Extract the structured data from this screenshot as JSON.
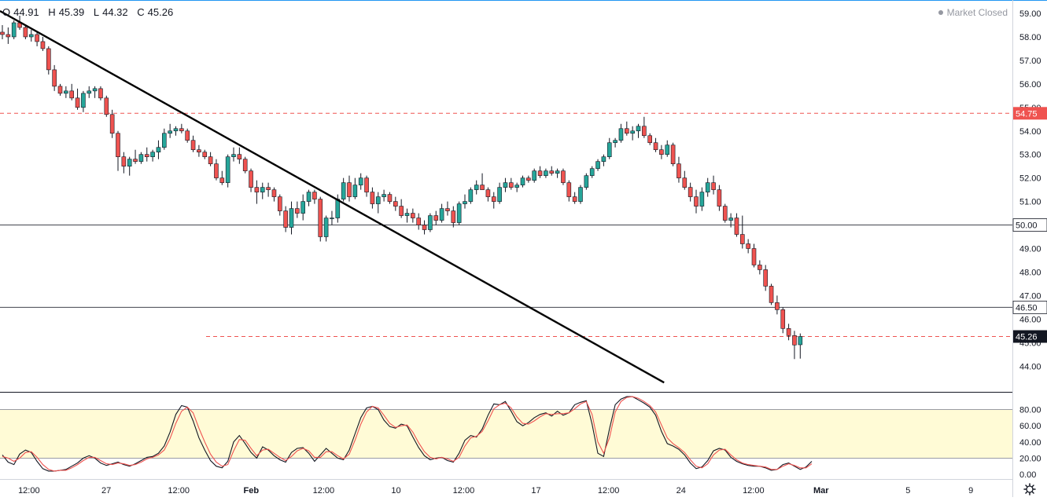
{
  "header": {
    "ohlc": [
      {
        "label": "O",
        "value": "44.91"
      },
      {
        "label": "H",
        "value": "45.39"
      },
      {
        "label": "L",
        "value": "44.32"
      },
      {
        "label": "C",
        "value": "45.26"
      }
    ],
    "market_status": "Market Closed"
  },
  "colors": {
    "up": "#26a69a",
    "down": "#ef5350",
    "candle_border": "#131722",
    "level_red": "#ef5350",
    "level_black": "#131722",
    "band_fill": "#fffbd6",
    "stoch_k": "#131722",
    "stoch_d": "#ef5350"
  },
  "chart_data": [
    {
      "type": "candlestick",
      "title": "",
      "xlabel": "",
      "ylabel": "",
      "ylim": [
        43.0,
        59.2
      ],
      "xlim": [
        0,
        1330
      ],
      "x_ticks": [
        {
          "label": "12:00",
          "x": 12
        },
        {
          "label": "27",
          "x": 44
        },
        {
          "label": "12:00",
          "x": 74
        },
        {
          "label": "Feb",
          "x": 104
        },
        {
          "label": "12:00",
          "x": 134
        },
        {
          "label": "10",
          "x": 164
        },
        {
          "label": "12:00",
          "x": 192
        },
        {
          "label": "17",
          "x": 222
        },
        {
          "label": "12:00",
          "x": 252
        },
        {
          "label": "24",
          "x": 282
        },
        {
          "label": "12:00",
          "x": 312
        },
        {
          "label": "Mar",
          "x": 340
        },
        {
          "label": "5",
          "x": 376
        },
        {
          "label": "9",
          "x": 402
        }
      ],
      "y_ticks": [
        "59.00",
        "58.00",
        "57.00",
        "56.00",
        "55.00",
        "54.00",
        "53.00",
        "52.00",
        "51.00",
        "50.00",
        "49.00",
        "48.00",
        "47.00",
        "46.00",
        "45.00",
        "44.00"
      ],
      "levels": [
        {
          "value": 54.75,
          "label": "54.75",
          "style": "dashed",
          "color": "red"
        },
        {
          "value": 50.0,
          "label": "50.00",
          "style": "solid",
          "color": "black"
        },
        {
          "value": 46.5,
          "label": "46.50",
          "style": "solid",
          "color": "black"
        },
        {
          "value": 45.26,
          "label": "45.26",
          "style": "dashed",
          "color": "red",
          "current": true
        }
      ],
      "trendline": {
        "from": {
          "x": 0,
          "y": 59.1
        },
        "to": {
          "x": 275,
          "y": 43.3
        }
      },
      "ohlc_series": [
        [
          58.2,
          58.5,
          57.9,
          58.1
        ],
        [
          58.1,
          58.4,
          57.7,
          58.0
        ],
        [
          58.0,
          58.7,
          57.9,
          58.6
        ],
        [
          58.6,
          58.9,
          58.3,
          58.4
        ],
        [
          58.4,
          58.5,
          57.9,
          58.0
        ],
        [
          58.0,
          58.3,
          57.8,
          58.1
        ],
        [
          58.1,
          58.2,
          57.6,
          57.8
        ],
        [
          57.8,
          58.0,
          57.4,
          57.5
        ],
        [
          57.5,
          57.6,
          56.4,
          56.6
        ],
        [
          56.6,
          56.8,
          55.7,
          55.9
        ],
        [
          55.9,
          56.0,
          55.5,
          55.6
        ],
        [
          55.6,
          55.9,
          55.4,
          55.7
        ],
        [
          55.7,
          56.0,
          55.3,
          55.4
        ],
        [
          55.4,
          55.8,
          54.9,
          55.0
        ],
        [
          55.0,
          55.7,
          54.8,
          55.6
        ],
        [
          55.6,
          55.9,
          55.4,
          55.7
        ],
        [
          55.7,
          55.9,
          55.4,
          55.8
        ],
        [
          55.8,
          55.9,
          55.3,
          55.4
        ],
        [
          55.4,
          55.5,
          54.6,
          54.7
        ],
        [
          54.7,
          54.9,
          53.7,
          53.9
        ],
        [
          53.9,
          54.0,
          52.3,
          52.9
        ],
        [
          52.9,
          53.1,
          52.2,
          52.5
        ],
        [
          52.5,
          52.9,
          52.1,
          52.8
        ],
        [
          52.8,
          53.2,
          52.6,
          52.7
        ],
        [
          52.7,
          53.1,
          52.6,
          53.0
        ],
        [
          53.0,
          53.3,
          52.7,
          52.9
        ],
        [
          52.9,
          53.2,
          52.7,
          53.1
        ],
        [
          53.1,
          53.6,
          52.8,
          53.3
        ],
        [
          53.3,
          54.1,
          53.2,
          53.9
        ],
        [
          53.9,
          54.3,
          53.7,
          54.0
        ],
        [
          54.0,
          54.2,
          53.8,
          54.1
        ],
        [
          54.1,
          54.3,
          53.9,
          54.0
        ],
        [
          54.0,
          54.1,
          53.5,
          53.6
        ],
        [
          53.6,
          53.8,
          53.1,
          53.2
        ],
        [
          53.2,
          53.4,
          52.9,
          53.1
        ],
        [
          53.1,
          53.2,
          52.8,
          52.9
        ],
        [
          52.9,
          53.1,
          52.5,
          52.6
        ],
        [
          52.6,
          52.8,
          51.9,
          52.0
        ],
        [
          52.0,
          52.3,
          51.7,
          51.8
        ],
        [
          51.8,
          53.0,
          51.6,
          52.9
        ],
        [
          52.9,
          53.3,
          52.7,
          53.0
        ],
        [
          53.0,
          53.3,
          52.6,
          52.8
        ],
        [
          52.8,
          52.9,
          52.2,
          52.3
        ],
        [
          52.3,
          52.4,
          51.4,
          51.6
        ],
        [
          51.6,
          51.9,
          50.9,
          51.4
        ],
        [
          51.4,
          51.8,
          51.1,
          51.6
        ],
        [
          51.6,
          51.8,
          51.2,
          51.5
        ],
        [
          51.5,
          51.6,
          51.0,
          51.2
        ],
        [
          51.2,
          51.3,
          50.4,
          50.6
        ],
        [
          50.6,
          50.8,
          49.7,
          49.9
        ],
        [
          49.9,
          51.0,
          49.6,
          50.7
        ],
        [
          50.7,
          51.0,
          50.3,
          50.5
        ],
        [
          50.5,
          51.3,
          50.2,
          51.0
        ],
        [
          51.0,
          51.5,
          50.8,
          51.4
        ],
        [
          51.4,
          51.5,
          50.9,
          51.1
        ],
        [
          51.1,
          51.2,
          49.3,
          49.5
        ],
        [
          49.5,
          50.4,
          49.3,
          50.3
        ],
        [
          50.3,
          50.6,
          50.0,
          50.3
        ],
        [
          50.3,
          51.3,
          50.1,
          51.1
        ],
        [
          51.1,
          52.0,
          51.0,
          51.8
        ],
        [
          51.8,
          52.1,
          51.0,
          51.2
        ],
        [
          51.2,
          52.0,
          51.1,
          51.7
        ],
        [
          51.7,
          52.2,
          51.5,
          52.0
        ],
        [
          52.0,
          52.1,
          51.2,
          51.4
        ],
        [
          51.4,
          51.6,
          50.7,
          50.9
        ],
        [
          50.9,
          51.4,
          50.5,
          51.2
        ],
        [
          51.2,
          51.5,
          51.0,
          51.3
        ],
        [
          51.3,
          51.4,
          50.9,
          51.0
        ],
        [
          51.0,
          51.2,
          50.6,
          50.8
        ],
        [
          50.8,
          51.1,
          50.3,
          50.4
        ],
        [
          50.4,
          50.7,
          50.1,
          50.5
        ],
        [
          50.5,
          50.7,
          50.1,
          50.3
        ],
        [
          50.3,
          50.5,
          49.8,
          50.0
        ],
        [
          50.0,
          50.2,
          49.6,
          49.8
        ],
        [
          49.8,
          50.5,
          49.7,
          50.4
        ],
        [
          50.4,
          50.6,
          50.0,
          50.2
        ],
        [
          50.2,
          50.9,
          50.1,
          50.7
        ],
        [
          50.7,
          51.0,
          50.4,
          50.6
        ],
        [
          50.6,
          50.8,
          49.9,
          50.1
        ],
        [
          50.1,
          51.0,
          50.0,
          50.9
        ],
        [
          50.9,
          51.3,
          50.7,
          51.0
        ],
        [
          51.0,
          51.6,
          50.9,
          51.5
        ],
        [
          51.5,
          51.9,
          51.3,
          51.7
        ],
        [
          51.7,
          52.2,
          51.5,
          51.5
        ],
        [
          51.5,
          51.6,
          51.0,
          51.2
        ],
        [
          51.2,
          51.4,
          50.7,
          51.0
        ],
        [
          51.0,
          51.8,
          50.9,
          51.6
        ],
        [
          51.6,
          52.0,
          51.4,
          51.8
        ],
        [
          51.8,
          52.0,
          51.5,
          51.6
        ],
        [
          51.6,
          51.8,
          51.4,
          51.7
        ],
        [
          51.7,
          52.1,
          51.6,
          52.0
        ],
        [
          52.0,
          52.1,
          51.8,
          51.9
        ],
        [
          51.9,
          52.4,
          51.8,
          52.3
        ],
        [
          52.3,
          52.5,
          52.0,
          52.1
        ],
        [
          52.1,
          52.4,
          52.0,
          52.3
        ],
        [
          52.3,
          52.5,
          52.1,
          52.2
        ],
        [
          52.2,
          52.4,
          52.0,
          52.3
        ],
        [
          52.3,
          52.4,
          51.7,
          51.8
        ],
        [
          51.8,
          51.9,
          51.0,
          51.2
        ],
        [
          51.2,
          51.4,
          50.9,
          51.0
        ],
        [
          51.0,
          51.7,
          50.9,
          51.6
        ],
        [
          51.6,
          52.2,
          51.5,
          52.1
        ],
        [
          52.1,
          52.5,
          52.0,
          52.4
        ],
        [
          52.4,
          52.8,
          52.3,
          52.7
        ],
        [
          52.7,
          53.0,
          52.5,
          52.9
        ],
        [
          52.9,
          53.7,
          52.8,
          53.5
        ],
        [
          53.5,
          53.7,
          53.3,
          53.6
        ],
        [
          53.6,
          54.3,
          53.5,
          54.1
        ],
        [
          54.1,
          54.4,
          53.8,
          53.9
        ],
        [
          53.9,
          54.2,
          53.6,
          54.0
        ],
        [
          54.0,
          54.3,
          53.7,
          54.2
        ],
        [
          54.2,
          54.6,
          53.7,
          53.8
        ],
        [
          53.8,
          53.9,
          53.4,
          53.5
        ],
        [
          53.5,
          53.7,
          53.1,
          53.2
        ],
        [
          53.2,
          53.4,
          52.8,
          53.0
        ],
        [
          53.0,
          53.6,
          52.9,
          53.4
        ],
        [
          53.4,
          53.5,
          52.5,
          52.6
        ],
        [
          52.6,
          52.9,
          51.8,
          52.0
        ],
        [
          52.0,
          52.3,
          51.5,
          51.6
        ],
        [
          51.6,
          51.8,
          51.0,
          51.2
        ],
        [
          51.2,
          51.5,
          50.5,
          50.8
        ],
        [
          50.8,
          51.6,
          50.6,
          51.4
        ],
        [
          51.4,
          52.0,
          51.2,
          51.8
        ],
        [
          51.8,
          52.1,
          51.3,
          51.5
        ],
        [
          51.5,
          51.7,
          50.6,
          50.8
        ],
        [
          50.8,
          50.9,
          50.1,
          50.2
        ],
        [
          50.2,
          50.5,
          49.9,
          50.3
        ],
        [
          50.3,
          50.5,
          49.5,
          49.6
        ],
        [
          49.6,
          50.4,
          49.0,
          49.2
        ],
        [
          49.2,
          49.4,
          48.8,
          49.0
        ],
        [
          49.0,
          49.2,
          48.2,
          48.3
        ],
        [
          48.3,
          48.5,
          47.9,
          48.1
        ],
        [
          48.1,
          48.3,
          47.2,
          47.4
        ],
        [
          47.4,
          47.5,
          46.6,
          46.7
        ],
        [
          46.7,
          47.0,
          46.2,
          46.4
        ],
        [
          46.4,
          46.5,
          45.4,
          45.6
        ],
        [
          45.6,
          45.8,
          45.1,
          45.3
        ],
        [
          45.3,
          45.5,
          44.3,
          44.9
        ],
        [
          44.91,
          45.39,
          44.32,
          45.26
        ]
      ]
    },
    {
      "type": "line",
      "title": "",
      "ylim": [
        0,
        100
      ],
      "y_ticks": [
        "80.00",
        "60.00",
        "40.00",
        "20.00",
        "0.00"
      ],
      "band": [
        20,
        80
      ],
      "series": [
        {
          "name": "",
          "values": [
            24,
            15,
            12,
            25,
            30,
            27,
            16,
            7,
            4,
            4,
            5,
            6,
            10,
            14,
            20,
            23,
            20,
            14,
            11,
            13,
            15,
            12,
            10,
            13,
            17,
            21,
            22,
            26,
            35,
            52,
            74,
            85,
            83,
            66,
            45,
            30,
            17,
            10,
            8,
            16,
            40,
            48,
            38,
            27,
            20,
            34,
            30,
            23,
            18,
            15,
            27,
            32,
            33,
            26,
            16,
            24,
            32,
            26,
            20,
            18,
            30,
            50,
            70,
            82,
            84,
            80,
            67,
            59,
            57,
            62,
            60,
            46,
            33,
            23,
            18,
            20,
            21,
            17,
            15,
            26,
            42,
            48,
            46,
            56,
            73,
            87,
            86,
            90,
            78,
            65,
            60,
            64,
            70,
            74,
            76,
            72,
            78,
            73,
            76,
            86,
            89,
            91,
            62,
            26,
            22,
            56,
            86,
            93,
            96,
            96,
            92,
            88,
            83,
            73,
            53,
            38,
            35,
            31,
            24,
            14,
            7,
            9,
            17,
            29,
            32,
            30,
            21,
            16,
            13,
            11,
            10,
            10,
            8,
            5,
            6,
            12,
            14,
            10,
            6,
            9,
            16
          ]
        },
        {
          "name": "",
          "values": [
            22,
            20,
            16,
            20,
            27,
            28,
            21,
            12,
            6,
            4,
            5,
            5,
            8,
            12,
            17,
            21,
            21,
            17,
            13,
            12,
            14,
            13,
            11,
            12,
            15,
            19,
            21,
            24,
            30,
            44,
            63,
            78,
            83,
            76,
            57,
            40,
            25,
            15,
            10,
            12,
            29,
            43,
            42,
            32,
            23,
            30,
            31,
            26,
            21,
            17,
            22,
            29,
            32,
            29,
            21,
            21,
            28,
            28,
            23,
            19,
            25,
            42,
            62,
            77,
            84,
            82,
            73,
            63,
            58,
            60,
            61,
            52,
            39,
            28,
            21,
            19,
            21,
            19,
            16,
            21,
            35,
            45,
            47,
            53,
            66,
            81,
            86,
            88,
            82,
            71,
            63,
            62,
            66,
            71,
            75,
            74,
            75,
            75,
            76,
            81,
            87,
            90,
            74,
            40,
            26,
            45,
            77,
            90,
            95,
            96,
            94,
            90,
            85,
            77,
            61,
            45,
            38,
            33,
            27,
            18,
            10,
            8,
            13,
            24,
            30,
            31,
            24,
            18,
            14,
            12,
            11,
            10,
            9,
            6,
            6,
            10,
            13,
            11,
            8,
            8,
            13
          ]
        }
      ]
    }
  ]
}
